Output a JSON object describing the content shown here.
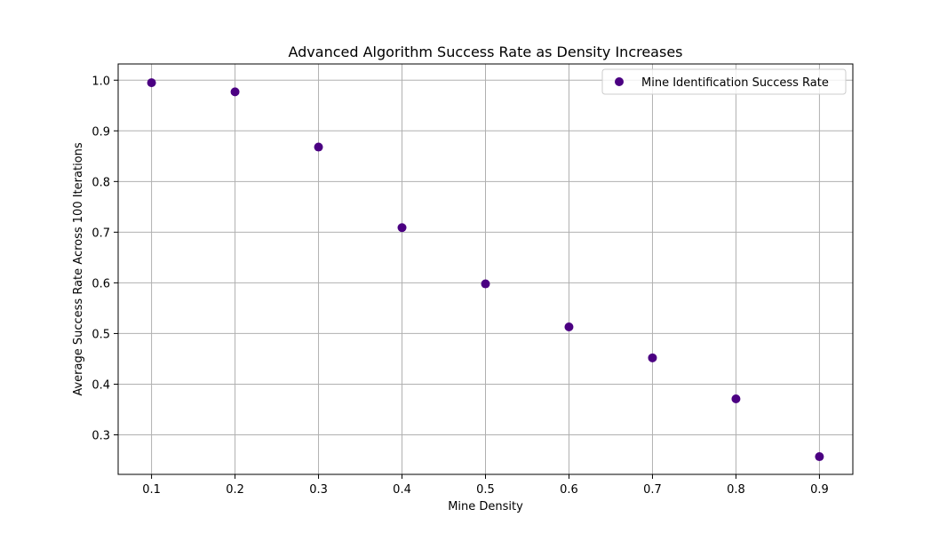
{
  "chart_data": {
    "type": "scatter",
    "title": "Advanced Algorithm Success Rate as Density Increases",
    "xlabel": "Mine Density",
    "ylabel": "Average Success Rate Across 100 Iterations",
    "xlim": [
      0.06,
      0.94
    ],
    "ylim": [
      0.222,
      1.032
    ],
    "xticks": [
      "0.1",
      "0.2",
      "0.3",
      "0.4",
      "0.5",
      "0.6",
      "0.7",
      "0.8",
      "0.9"
    ],
    "yticks": [
      "0.3",
      "0.4",
      "0.5",
      "0.6",
      "0.7",
      "0.8",
      "0.9",
      "1.0"
    ],
    "grid": true,
    "legend_position": "top-right",
    "series": [
      {
        "name": "Mine Identification Success Rate",
        "color": "#4b0082",
        "x": [
          0.1,
          0.2,
          0.3,
          0.4,
          0.5,
          0.6,
          0.7,
          0.8,
          0.9
        ],
        "y": [
          0.995,
          0.977,
          0.868,
          0.709,
          0.598,
          0.513,
          0.452,
          0.371,
          0.257
        ]
      }
    ]
  }
}
